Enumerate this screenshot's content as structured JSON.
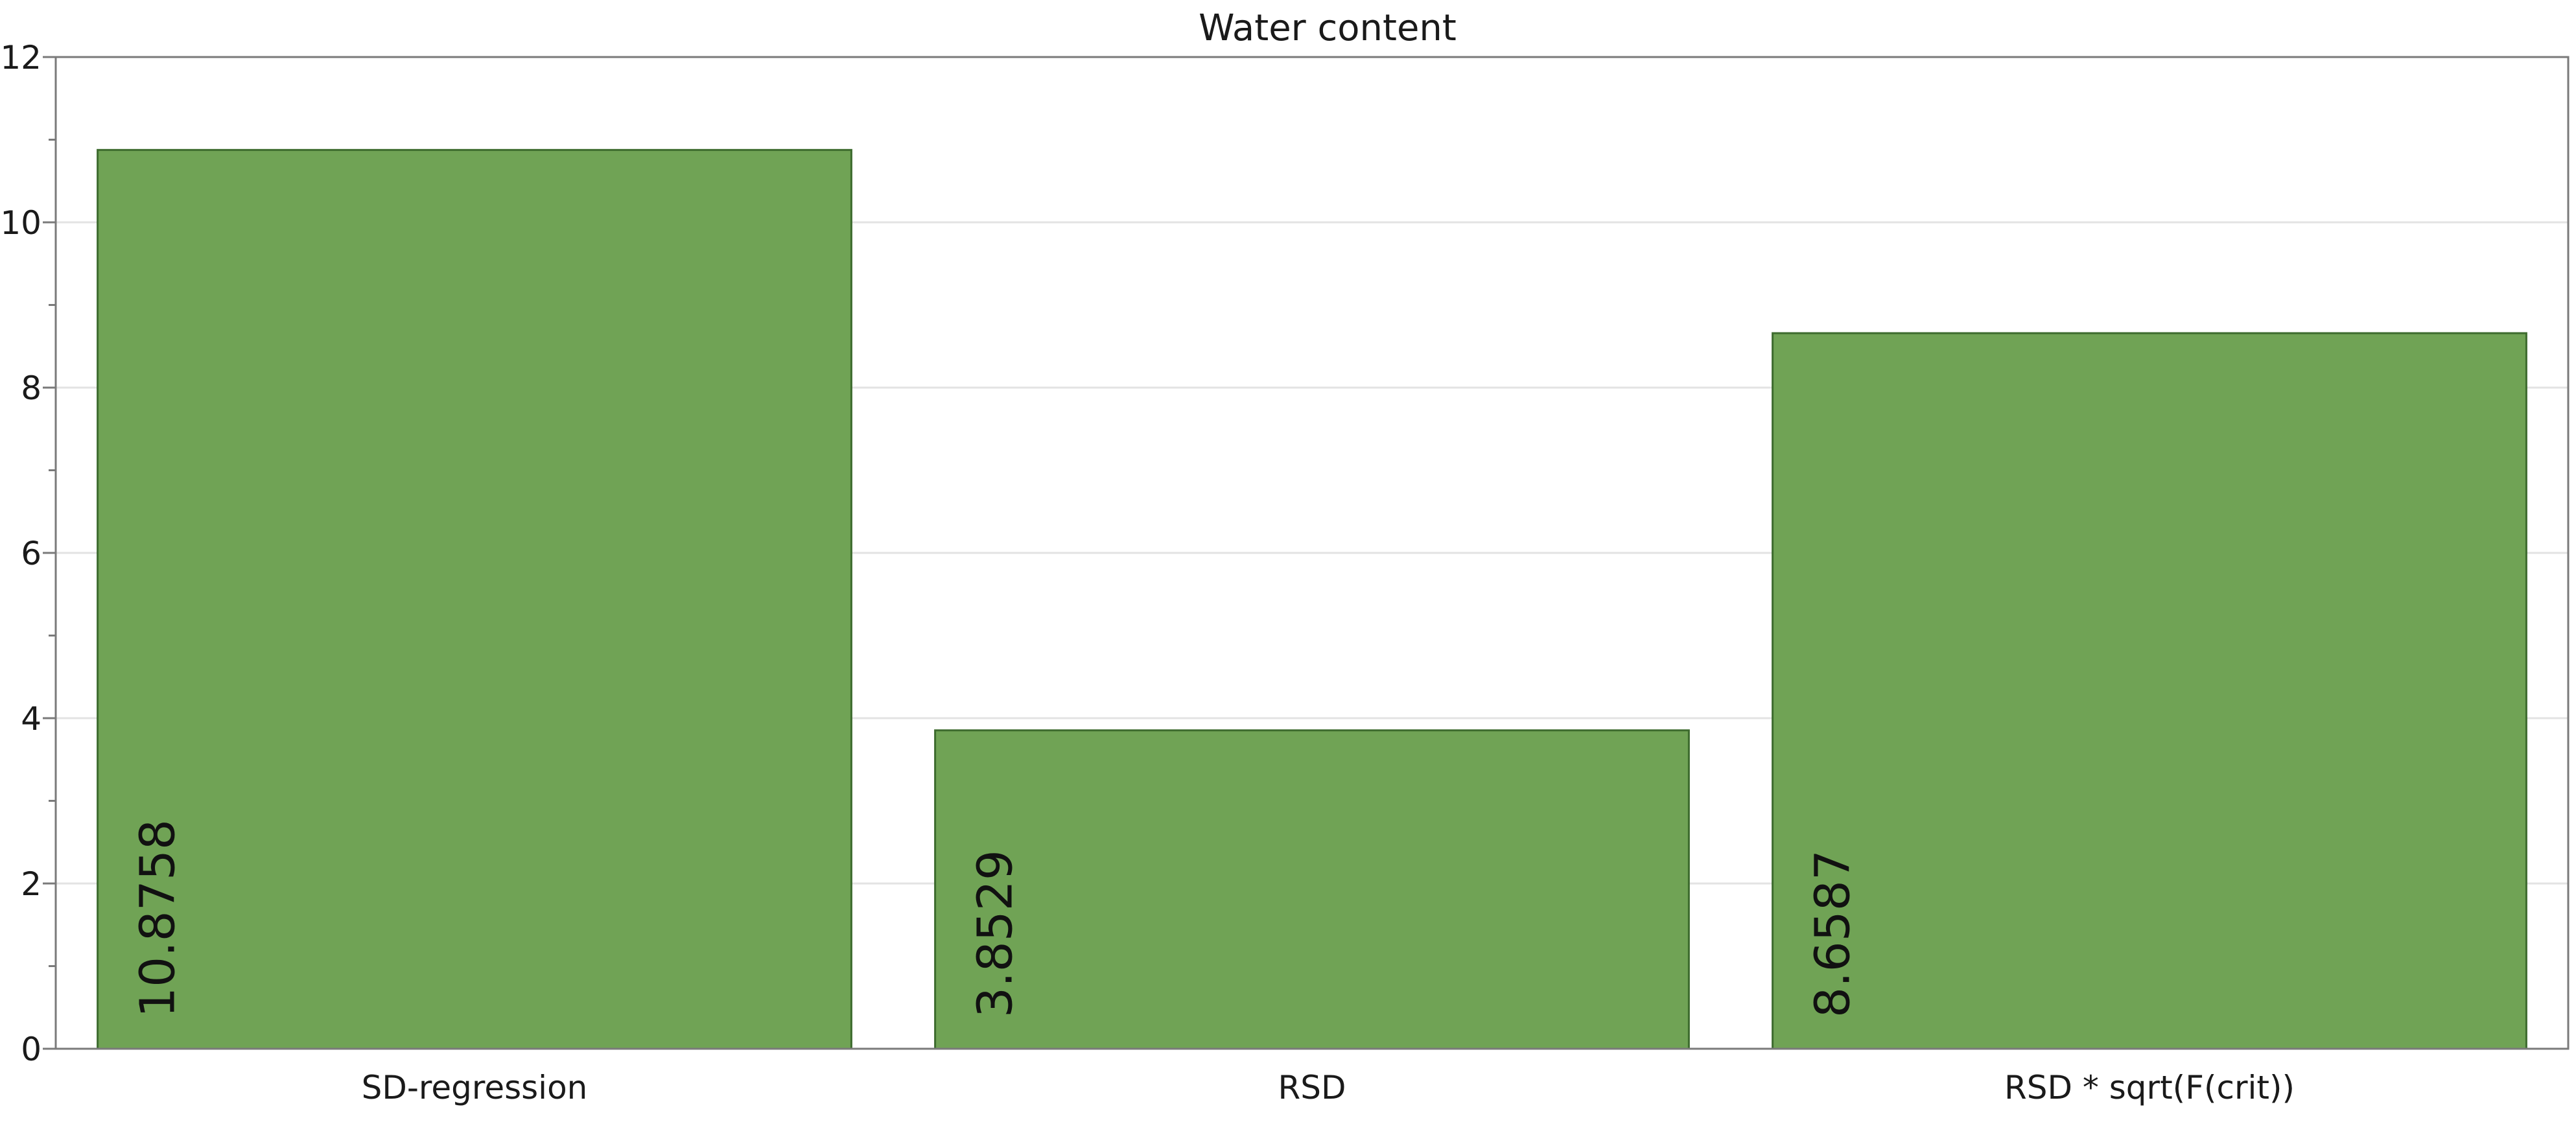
{
  "chart_data": {
    "type": "bar",
    "title": "Water content",
    "categories": [
      "SD-regression",
      "RSD",
      "RSD * sqrt(F(crit))"
    ],
    "values": [
      10.8758,
      3.8529,
      8.6587
    ],
    "value_labels": [
      "10.8758",
      "3.8529",
      "8.6587"
    ],
    "xlabel": "",
    "ylabel": "",
    "ylim": [
      0,
      12
    ],
    "yticks": [
      0,
      2,
      4,
      6,
      8,
      10,
      12
    ],
    "grid": true,
    "bar_color": "#70a355"
  }
}
